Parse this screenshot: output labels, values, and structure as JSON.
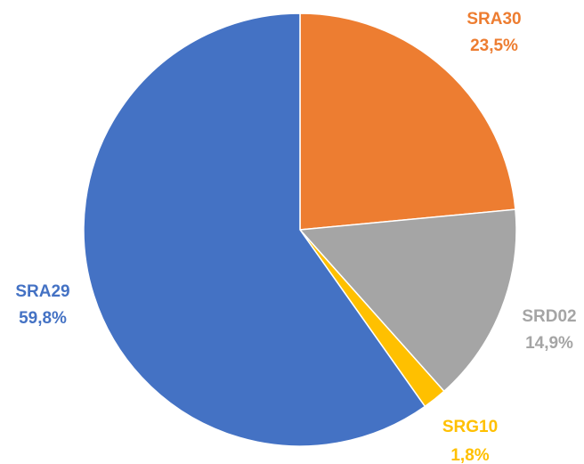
{
  "chart_data": {
    "type": "pie",
    "categories": [
      "SRA30",
      "SRD02",
      "SRG10",
      "SRA29"
    ],
    "values": [
      23.5,
      14.9,
      1.8,
      59.8
    ],
    "value_labels": [
      "23,5%",
      "14,9%",
      "1,8%",
      "59,8%"
    ],
    "colors": [
      "#ed7d31",
      "#a5a5a5",
      "#ffc000",
      "#4472c4"
    ]
  }
}
